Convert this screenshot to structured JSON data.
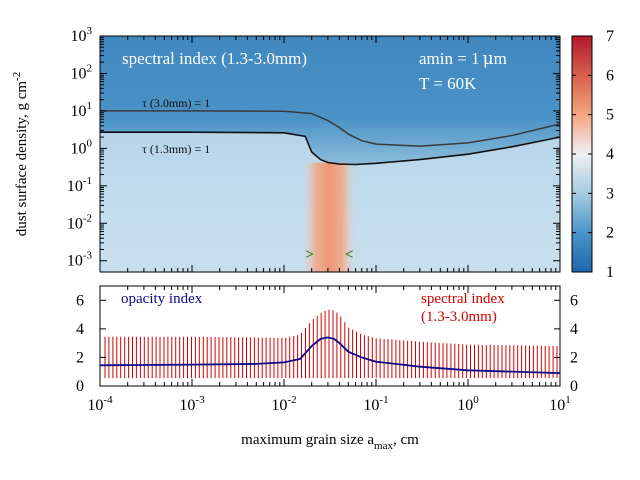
{
  "chart_data": [
    {
      "type": "heatmap",
      "title": "spectral index (1.3-3.0mm)",
      "annotations": [
        "amin = 1",
        "μ",
        "m",
        "T = 60K"
      ],
      "ylabel": "dust surface density, g cm",
      "ylabel_exp": "-2",
      "x_scale": "log",
      "y_scale": "log",
      "xlim": [
        0.0001,
        10
      ],
      "ylim": [
        0.0005,
        1000
      ],
      "y_ticks": [
        {
          "base": "10",
          "exp": "3"
        },
        {
          "base": "10",
          "exp": "2"
        },
        {
          "base": "10",
          "exp": "1"
        },
        {
          "base": "10",
          "exp": "0"
        },
        {
          "base": "10",
          "exp": "-1"
        },
        {
          "base": "10",
          "exp": "-2"
        },
        {
          "base": "10",
          "exp": "-3"
        }
      ],
      "colorbar": {
        "range": [
          1,
          7
        ],
        "ticks": [
          "1",
          "2",
          "3",
          "4",
          "5",
          "6",
          "7"
        ]
      },
      "contours": [
        {
          "label": "τ (3.0mm) = 1",
          "x": [
            0.0001,
            0.001,
            0.01,
            0.02,
            0.03,
            0.04,
            0.05,
            0.07,
            0.1,
            0.3,
            1,
            3,
            10
          ],
          "y": [
            10,
            10,
            9.8,
            8.5,
            5.5,
            3.6,
            2.4,
            1.6,
            1.3,
            1.15,
            1.4,
            2.2,
            4.5
          ]
        },
        {
          "label": "τ (1.3mm) = 1",
          "x": [
            0.0001,
            0.001,
            0.01,
            0.017,
            0.02,
            0.025,
            0.03,
            0.04,
            0.06,
            0.1,
            0.3,
            1,
            3,
            10
          ],
          "y": [
            2.7,
            2.7,
            2.6,
            2.1,
            0.8,
            0.5,
            0.42,
            0.38,
            0.37,
            0.4,
            0.5,
            0.7,
            1.1,
            2.0
          ]
        }
      ],
      "markers": [
        {
          "symbol": ">",
          "x": 0.019,
          "y": 0.0015
        },
        {
          "symbol": "<",
          "x": 0.051,
          "y": 0.0015
        }
      ]
    },
    {
      "type": "line",
      "xlabel": "maximum grain size a",
      "xlabel_sub": "max",
      "xlabel_unit": ", cm",
      "x_scale": "log",
      "xlim": [
        0.0001,
        10
      ],
      "ylim": [
        0,
        7
      ],
      "x_ticks": [
        {
          "base": "10",
          "exp": "-4"
        },
        {
          "base": "10",
          "exp": "-3"
        },
        {
          "base": "10",
          "exp": "-2"
        },
        {
          "base": "10",
          "exp": "-1"
        },
        {
          "base": "10",
          "exp": "0"
        },
        {
          "base": "10",
          "exp": "1"
        }
      ],
      "y_ticks": [
        "0",
        "2",
        "4",
        "6"
      ],
      "y2_ticks": [
        "0",
        "2",
        "4",
        "6"
      ],
      "series": [
        {
          "name": "opacity index",
          "color": "#0a0a8c",
          "style": "line",
          "x": [
            0.0001,
            0.001,
            0.005,
            0.01,
            0.015,
            0.02,
            0.025,
            0.03,
            0.035,
            0.04,
            0.05,
            0.07,
            0.1,
            0.3,
            1,
            10
          ],
          "y": [
            1.45,
            1.5,
            1.55,
            1.65,
            1.9,
            2.8,
            3.3,
            3.4,
            3.3,
            3.0,
            2.4,
            2.0,
            1.7,
            1.35,
            1.1,
            0.9
          ]
        },
        {
          "name": "spectral index",
          "name2": "(1.3-3.0mm)",
          "color": "#d40000",
          "style": "impulses",
          "x": [
            0.0001,
            0.001,
            0.005,
            0.01,
            0.015,
            0.02,
            0.025,
            0.03,
            0.035,
            0.04,
            0.05,
            0.07,
            0.1,
            0.3,
            1,
            10
          ],
          "y": [
            3.45,
            3.45,
            3.4,
            3.35,
            3.6,
            4.6,
            5.1,
            5.35,
            5.3,
            5.0,
            4.1,
            3.6,
            3.35,
            3.1,
            2.9,
            2.8
          ]
        }
      ]
    }
  ]
}
